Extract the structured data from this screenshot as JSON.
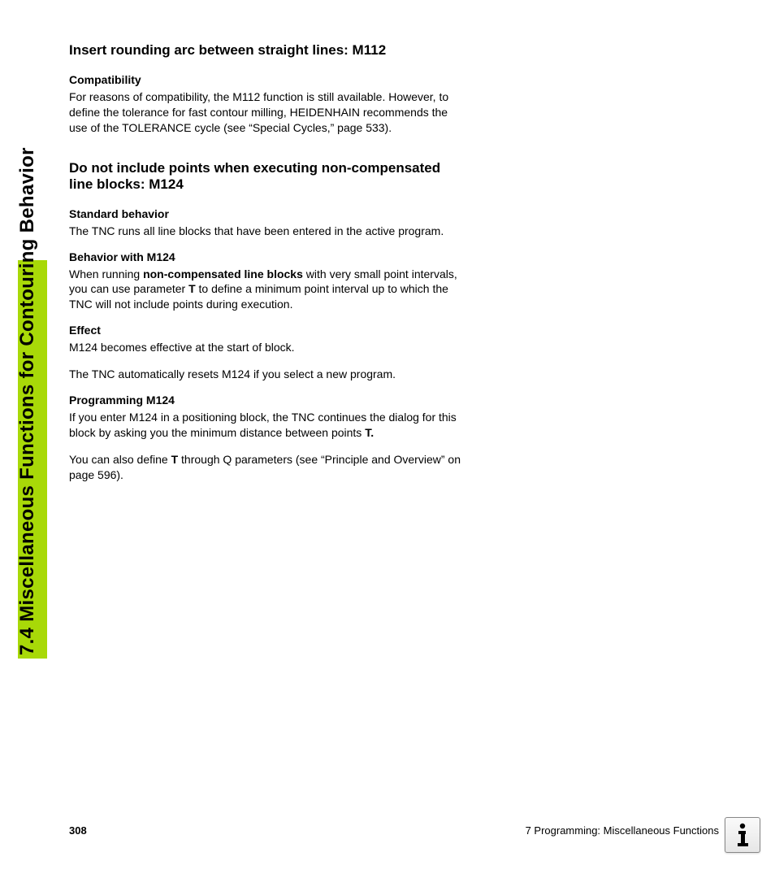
{
  "page": {
    "side_title": "7.4 Miscellaneous Functions for Contouring Behavior",
    "page_number": "308",
    "chapter_ref": "7 Programming: Miscellaneous Functions"
  },
  "colors": {
    "tab_green": "#a8d908",
    "background": "#ffffff",
    "text": "#000000"
  },
  "sections": [
    {
      "heading": "Insert rounding arc between straight lines: M112",
      "subs": [
        {
          "subheading": "Compatibility",
          "paras": [
            {
              "text": "For reasons of compatibility, the M112 function is still available. However, to define the tolerance for fast contour milling, HEIDENHAIN recommends the use of the TOLERANCE cycle (see “Special Cycles,” page 533)."
            }
          ]
        }
      ]
    },
    {
      "heading": "Do not include points when executing non-compensated line blocks: M124",
      "subs": [
        {
          "subheading": "Standard behavior",
          "paras": [
            {
              "text": "The TNC runs all line blocks that have been entered in the active program."
            }
          ]
        },
        {
          "subheading": "Behavior with M124",
          "paras": [
            {
              "runs": [
                {
                  "t": "When running "
                },
                {
                  "t": "non-compensated line blocks",
                  "bold": true
                },
                {
                  "t": " with very small point intervals, you can use parameter "
                },
                {
                  "t": "T",
                  "bold": true
                },
                {
                  "t": " to define a minimum point interval up to which the TNC will not include points during execution."
                }
              ]
            }
          ]
        },
        {
          "subheading": "Effect",
          "paras": [
            {
              "text": "M124 becomes effective at the start of block."
            },
            {
              "text": "The TNC automatically resets M124 if you select a new program."
            }
          ]
        },
        {
          "subheading": "Programming M124",
          "paras": [
            {
              "runs": [
                {
                  "t": "If you enter M124 in a positioning block, the TNC continues the dialog for this block by asking you the minimum distance between points "
                },
                {
                  "t": "T.",
                  "bold": true
                }
              ]
            },
            {
              "runs": [
                {
                  "t": "You can also define "
                },
                {
                  "t": "T",
                  "bold": true
                },
                {
                  "t": " through Q parameters (see “Principle and Overview” on page 596)."
                }
              ]
            }
          ]
        }
      ]
    }
  ]
}
